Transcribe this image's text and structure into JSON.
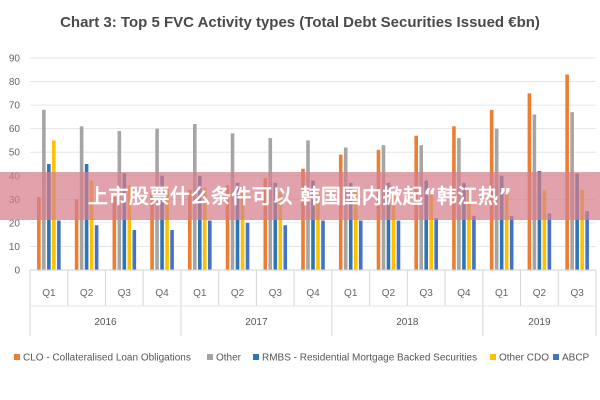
{
  "overlay": {
    "banner_text": "上市股票什么条件可以 韩国国内掀起“韩江热”"
  },
  "colors": {
    "clo": "#ed7d31",
    "other": "#a5a5a5",
    "rmbs": "#2e75b6",
    "other_cdo": "#ffc000",
    "abcp": "#4472c4",
    "grid": "#e6e6e6",
    "overlay": "#d67e8c"
  },
  "chart_data": {
    "type": "bar",
    "title": "Chart 3: Top 5 FVC Activity types (Total Debt Securities Issued €bn)",
    "ylim": [
      0,
      90
    ],
    "yticks": [
      0,
      10,
      20,
      30,
      40,
      50,
      60,
      70,
      80,
      90
    ],
    "categories": [
      "Q1",
      "Q2",
      "Q3",
      "Q4",
      "Q1",
      "Q2",
      "Q3",
      "Q4",
      "Q1",
      "Q2",
      "Q3",
      "Q4",
      "Q1",
      "Q2",
      "Q3"
    ],
    "groups": [
      {
        "label": "2016",
        "count": 4
      },
      {
        "label": "2017",
        "count": 4
      },
      {
        "label": "2018",
        "count": 4
      },
      {
        "label": "2019",
        "count": 3
      }
    ],
    "series": [
      {
        "name": "CLO - Collateralised Loan Obligations",
        "color_key": "clo",
        "values": [
          31,
          30,
          31,
          33,
          34,
          36,
          39,
          43,
          49,
          51,
          57,
          61,
          68,
          75,
          83
        ]
      },
      {
        "name": "Other",
        "color_key": "other",
        "values": [
          68,
          61,
          59,
          60,
          62,
          58,
          56,
          55,
          52,
          53,
          53,
          56,
          60,
          66,
          67
        ]
      },
      {
        "name": "RMBS - Residential Mortgage Backed Securities",
        "color_key": "rmbs",
        "values": [
          45,
          45,
          41,
          40,
          40,
          37,
          37,
          38,
          37,
          37,
          38,
          37,
          40,
          42,
          41
        ]
      },
      {
        "name": "Other CDO",
        "color_key": "other_cdo",
        "values": [
          55,
          38,
          36,
          35,
          35,
          33,
          33,
          33,
          33,
          32,
          33,
          34,
          33,
          34,
          34
        ]
      },
      {
        "name": "ABCP",
        "color_key": "abcp",
        "values": [
          21,
          19,
          17,
          17,
          21,
          20,
          19,
          21,
          21,
          21,
          22,
          23,
          23,
          24,
          25
        ]
      }
    ],
    "grid": true,
    "legend_position": "bottom"
  }
}
